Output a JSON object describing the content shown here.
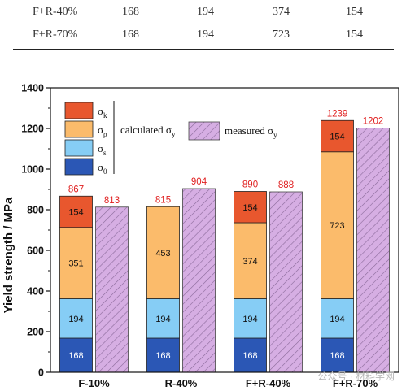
{
  "table": {
    "rows": [
      [
        "F+R-40%",
        "168",
        "194",
        "374",
        "154"
      ],
      [
        "F+R-70%",
        "168",
        "194",
        "723",
        "154"
      ]
    ]
  },
  "colors": {
    "sigma0": "#2b57b5",
    "sigma_s": "#86cdf5",
    "sigma_rho": "#fbbb6b",
    "sigma_k": "#e8572e",
    "measured": "#d6aee3",
    "value_label": "#e02020"
  },
  "watermark": "公众号 · 材料学网",
  "chart_data": {
    "type": "bar",
    "ylabel": "Yield strength / MPa",
    "xlabel": "",
    "ylim": [
      0,
      1400
    ],
    "yticks": [
      "0",
      "200",
      "400",
      "600",
      "800",
      "1000",
      "1200",
      "1400"
    ],
    "categories": [
      "F-10%",
      "R-40%",
      "F+R-40%",
      "F+R-70%"
    ],
    "calculated_stack": [
      {
        "key": "sigma0",
        "values": [
          168,
          168,
          168,
          168
        ]
      },
      {
        "key": "sigma_s",
        "values": [
          194,
          194,
          194,
          194
        ]
      },
      {
        "key": "sigma_rho",
        "values": [
          351,
          453,
          374,
          723
        ]
      },
      {
        "key": "sigma_k",
        "values": [
          154,
          null,
          154,
          154
        ]
      }
    ],
    "calculated_totals": [
      "867",
      "815",
      "890",
      "1239"
    ],
    "measured_values": [
      813,
      904,
      888,
      1202
    ],
    "measured_labels": [
      "813",
      "904",
      "888",
      "1202"
    ],
    "legend": {
      "placement": "top-left",
      "sigma_k": {
        "base": "σ",
        "sub": "k"
      },
      "sigma_rho": {
        "base": "σ",
        "sub": "ρ"
      },
      "sigma_s": {
        "base": "σ",
        "sub": "s"
      },
      "sigma0": {
        "base": "σ",
        "sub": "0"
      },
      "calculated": {
        "base": "calculated σ",
        "sub": "y"
      },
      "measured": {
        "base": "measured σ",
        "sub": "y"
      }
    }
  }
}
